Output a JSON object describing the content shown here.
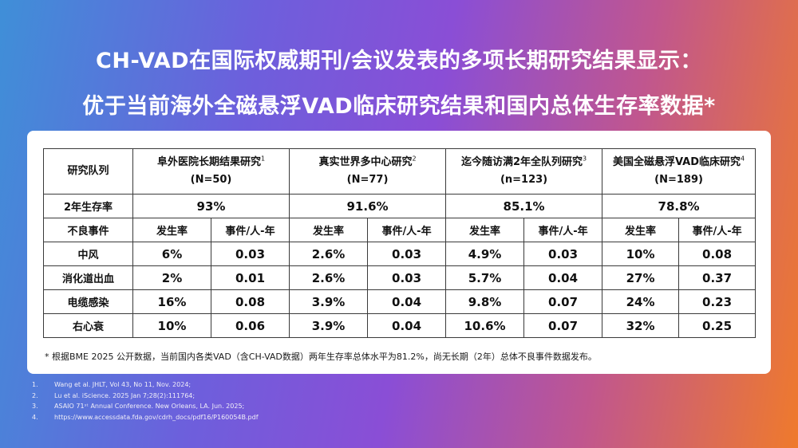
{
  "title": {
    "line1": "CH-VAD在国际权威期刊/会议发表的多项长期研究结果显示：",
    "line2": "优于当前海外全磁悬浮VAD临床研究结果和国内总体生存率数据*"
  },
  "table": {
    "header_label": "研究队列",
    "studies": [
      {
        "name": "阜外医院长期结果研究",
        "ref": "1",
        "n": "(N=50)",
        "survival": "93%"
      },
      {
        "name": "真实世界多中心研究",
        "ref": "2",
        "n": "(N=77)",
        "survival": "91.6%"
      },
      {
        "name": "迄今随访满2年全队列研究",
        "ref": "3",
        "n": "(n=123)",
        "survival": "85.1%"
      },
      {
        "name": "美国全磁悬浮VAD临床研究",
        "ref": "4",
        "n": "(N=189)",
        "survival": "78.8%"
      }
    ],
    "survival_label": "2年生存率",
    "adverse_label": "不良事件",
    "rate_label": "发生率",
    "per_person_year_label": "事件/人-年",
    "events": [
      {
        "name": "中风",
        "values": [
          "6%",
          "0.03",
          "2.6%",
          "0.03",
          "4.9%",
          "0.03",
          "10%",
          "0.08"
        ]
      },
      {
        "name": "消化道出血",
        "values": [
          "2%",
          "0.01",
          "2.6%",
          "0.03",
          "5.7%",
          "0.04",
          "27%",
          "0.37"
        ]
      },
      {
        "name": "电缆感染",
        "values": [
          "16%",
          "0.08",
          "3.9%",
          "0.04",
          "9.8%",
          "0.07",
          "24%",
          "0.23"
        ]
      },
      {
        "name": "右心衰",
        "values": [
          "10%",
          "0.06",
          "3.9%",
          "0.04",
          "10.6%",
          "0.07",
          "32%",
          "0.25"
        ]
      }
    ]
  },
  "footnote": "* 根据BME 2025 公开数据，当前国内各类VAD（含CH-VAD数据）两年生存率总体水平为81.2%，尚无长期（2年）总体不良事件数据发布。",
  "references": [
    {
      "num": "1.",
      "text": "Wang et al. JHLT, Vol 43, No 11, Nov. 2024;"
    },
    {
      "num": "2.",
      "text": "Lu et al. iScience. 2025 Jan 7;28(2):111764;"
    },
    {
      "num": "3.",
      "text": "ASAIO 71ˢᵗ Annual Conference. New Orleans, LA. Jun. 2025;"
    },
    {
      "num": "4.",
      "text": "https://www.accessdata.fda.gov/cdrh_docs/pdf16/P160054B.pdf"
    }
  ]
}
